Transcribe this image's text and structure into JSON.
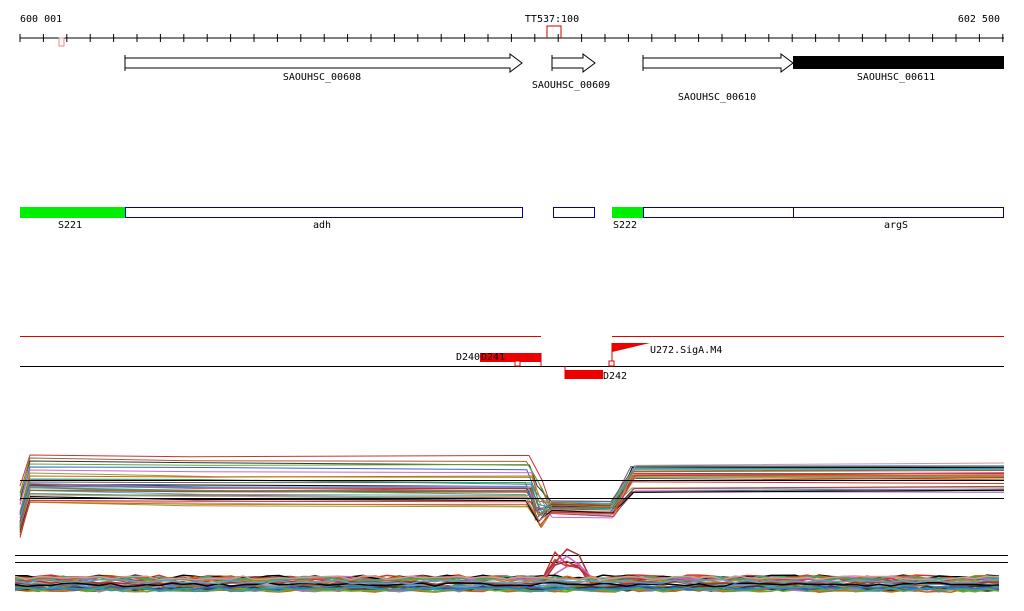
{
  "ruler": {
    "start_label": "600 001",
    "marker_label": "TT537:100",
    "end_label": "602 500"
  },
  "genes": [
    {
      "label": "SAOUHSC_00608"
    },
    {
      "label": "SAOUHSC_00609"
    },
    {
      "label": "SAOUHSC_00610"
    },
    {
      "label": "SAOUHSC_00611"
    }
  ],
  "segments": [
    {
      "label": "S221"
    },
    {
      "label": "adh"
    },
    {
      "label": "S222"
    },
    {
      "label": "argS"
    }
  ],
  "features": [
    {
      "label": "D240"
    },
    {
      "label": "D241"
    },
    {
      "label": "D242"
    },
    {
      "label": "U272.SigA.M4"
    }
  ]
}
